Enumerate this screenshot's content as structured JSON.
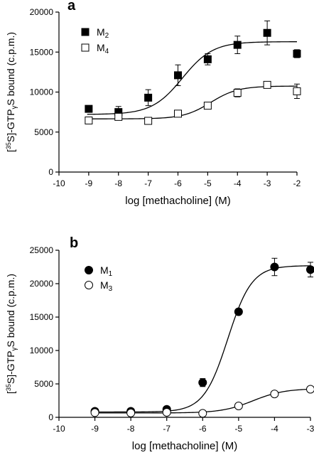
{
  "chart_data": [
    {
      "panel_label": "a",
      "type": "scatter",
      "xlabel": "log [methacholine] (M)",
      "ylabel": "[35S]-GTPγS bound (c.p.m.)",
      "ylabel_parts": {
        "open": "[",
        "sup": "35",
        "mid": "S]-GTP",
        "sub": "γ",
        "close": "S bound (c.p.m.)"
      },
      "xlim": [
        -10,
        -2
      ],
      "ylim": [
        0,
        20000
      ],
      "xticks": [
        -10,
        -9,
        -8,
        -7,
        -6,
        -5,
        -4,
        -3,
        -2
      ],
      "yticks": [
        0,
        5000,
        10000,
        15000,
        20000
      ],
      "legend_position": "top-left",
      "grid": false,
      "series": [
        {
          "name": "M2",
          "name_base": "M",
          "name_sub": "2",
          "marker": "square",
          "fill": "#000000",
          "x": [
            -9,
            -8,
            -7,
            -6,
            -5,
            -4,
            -3,
            -2
          ],
          "y": [
            7900,
            7500,
            9300,
            12100,
            14100,
            15900,
            17400,
            14800
          ],
          "err": [
            250,
            700,
            1000,
            1300,
            700,
            1100,
            1500,
            500
          ],
          "fit": {
            "bottom": 7200,
            "top": 16300,
            "log_ec50": -5.85,
            "hill": 0.85
          }
        },
        {
          "name": "M4",
          "name_base": "M",
          "name_sub": "4",
          "marker": "square",
          "fill": "#ffffff",
          "x": [
            -9,
            -8,
            -7,
            -6,
            -5,
            -4,
            -3,
            -2
          ],
          "y": [
            6450,
            6900,
            6400,
            7300,
            8300,
            9900,
            10900,
            10100
          ],
          "err": [
            150,
            200,
            150,
            250,
            200,
            500,
            400,
            900
          ],
          "fit": {
            "bottom": 6650,
            "top": 10750,
            "log_ec50": -4.9,
            "hill": 0.95
          }
        }
      ]
    },
    {
      "panel_label": "b",
      "type": "scatter",
      "xlabel": "log [methacholine] (M)",
      "ylabel": "[35S]-GTPγS bound (c.p.m.)",
      "ylabel_parts": {
        "open": "[",
        "sup": "35",
        "mid": "S]-GTP",
        "sub": "γ",
        "close": "S bound (c.p.m.)"
      },
      "xlim": [
        -10,
        -3
      ],
      "ylim": [
        0,
        25000
      ],
      "xticks": [
        -10,
        -9,
        -8,
        -7,
        -6,
        -5,
        -4,
        -3
      ],
      "yticks": [
        0,
        5000,
        10000,
        15000,
        20000,
        25000
      ],
      "legend_position": "top-left",
      "grid": false,
      "series": [
        {
          "name": "M1",
          "name_base": "M",
          "name_sub": "1",
          "marker": "circle",
          "fill": "#000000",
          "x": [
            -9,
            -8,
            -7,
            -6,
            -5,
            -4,
            -3
          ],
          "y": [
            900,
            900,
            1200,
            5200,
            15800,
            22500,
            22100
          ],
          "err": [
            150,
            150,
            250,
            600,
            300,
            1300,
            1100
          ],
          "fit": {
            "bottom": 800,
            "top": 22700,
            "log_ec50": -5.3,
            "hill": 1.3
          }
        },
        {
          "name": "M3",
          "name_base": "M",
          "name_sub": "3",
          "marker": "circle",
          "fill": "#ffffff",
          "x": [
            -9,
            -8,
            -7,
            -6,
            -5,
            -4,
            -3
          ],
          "y": [
            700,
            650,
            750,
            600,
            1700,
            3500,
            4200
          ],
          "err": [
            100,
            100,
            100,
            100,
            150,
            200,
            250
          ],
          "fit": {
            "bottom": 650,
            "top": 4300,
            "log_ec50": -4.6,
            "hill": 1.0
          }
        }
      ]
    }
  ]
}
